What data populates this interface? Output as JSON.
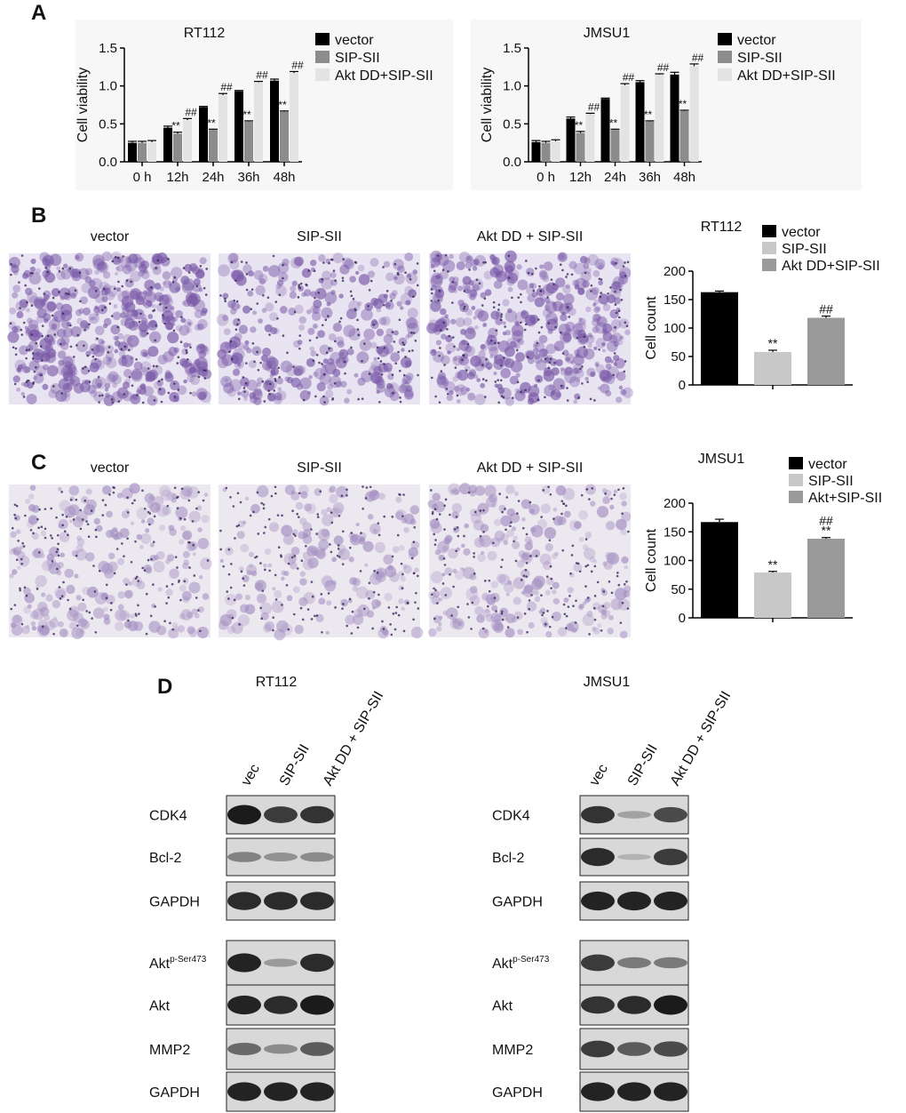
{
  "panel_labels": [
    "A",
    "B",
    "C",
    "D"
  ],
  "chart_data": [
    {
      "type": "bar",
      "title": "RT112",
      "y_label": "Cell viability",
      "categories": [
        "0 h",
        "12h",
        "24h",
        "36h",
        "48h"
      ],
      "ylim": [
        0,
        1.5
      ],
      "yticks": [
        {
          "value": 0,
          "label": "0.0"
        },
        {
          "value": 0.5,
          "label": "0.5"
        },
        {
          "value": 1,
          "label": "1.0"
        },
        {
          "value": 1.5,
          "label": "1.5"
        }
      ],
      "series": [
        {
          "name": "vector",
          "color": "#000000",
          "values": [
            0.25,
            0.45,
            0.72,
            0.93,
            1.07
          ],
          "errors": [
            0.02,
            0.02,
            0.01,
            0.01,
            0.02
          ],
          "annotations": [
            null,
            null,
            null,
            null,
            null
          ]
        },
        {
          "name": "SIP-SII",
          "color": "#8c8c8c",
          "values": [
            0.25,
            0.37,
            0.42,
            0.53,
            0.66
          ],
          "errors": [
            0.02,
            0.02,
            0.01,
            0.01,
            0.01
          ],
          "annotations": [
            null,
            [
              "**"
            ],
            [
              "**"
            ],
            [
              "**"
            ],
            [
              "**"
            ]
          ]
        },
        {
          "name": "Akt DD+SIP-SII",
          "color": "#e3e3e3",
          "values": [
            0.26,
            0.55,
            0.88,
            1.05,
            1.17
          ],
          "errors": [
            0.02,
            0.02,
            0.02,
            0.01,
            0.02
          ],
          "annotations": [
            null,
            [
              "##"
            ],
            [
              "##"
            ],
            [
              "##"
            ],
            [
              "##"
            ]
          ]
        }
      ]
    },
    {
      "type": "bar",
      "title": "JMSU1",
      "y_label": "Cell viability",
      "categories": [
        "0 h",
        "12h",
        "24h",
        "36h",
        "48h"
      ],
      "ylim": [
        0,
        1.5
      ],
      "yticks": [
        {
          "value": 0,
          "label": "0.0"
        },
        {
          "value": 0.5,
          "label": "0.5"
        },
        {
          "value": 1,
          "label": "1.0"
        },
        {
          "value": 1.5,
          "label": "1.5"
        }
      ],
      "series": [
        {
          "name": "vector",
          "color": "#000000",
          "values": [
            0.26,
            0.57,
            0.83,
            1.05,
            1.15
          ],
          "errors": [
            0.02,
            0.02,
            0.01,
            0.02,
            0.03
          ],
          "annotations": [
            null,
            null,
            null,
            null,
            null
          ]
        },
        {
          "name": "SIP-SII",
          "color": "#8c8c8c",
          "values": [
            0.25,
            0.38,
            0.42,
            0.53,
            0.67
          ],
          "errors": [
            0.02,
            0.02,
            0.01,
            0.01,
            0.01
          ],
          "annotations": [
            null,
            [
              "**"
            ],
            [
              "**"
            ],
            [
              "**"
            ],
            [
              "**"
            ]
          ]
        },
        {
          "name": "Akt DD+SIP-SII",
          "color": "#e3e3e3",
          "values": [
            0.27,
            0.63,
            1.01,
            1.15,
            1.26
          ],
          "errors": [
            0.02,
            0.01,
            0.02,
            0.01,
            0.03
          ],
          "annotations": [
            null,
            [
              "##"
            ],
            [
              "##"
            ],
            [
              "##"
            ],
            [
              "##"
            ]
          ]
        }
      ]
    },
    {
      "type": "bar",
      "title": "RT112",
      "y_label": "Cell count",
      "ylim": [
        0,
        200
      ],
      "yticks": [
        0,
        50,
        100,
        150,
        200
      ],
      "series": [
        {
          "name": "vector",
          "color": "#000000",
          "values": [
            163
          ],
          "errors": [
            2
          ],
          "annotations": [
            null
          ]
        },
        {
          "name": "SIP-SII",
          "color": "#c8c8c8",
          "values": [
            58
          ],
          "errors": [
            3
          ],
          "annotations": [
            [
              "**"
            ]
          ]
        },
        {
          "name": "Akt DD+SIP-SII",
          "color": "#9a9a9a",
          "values": [
            118
          ],
          "errors": [
            3
          ],
          "annotations": [
            [
              "##"
            ]
          ]
        }
      ]
    },
    {
      "type": "bar",
      "title": "JMSU1",
      "y_label": "Cell count",
      "ylim": [
        0,
        200
      ],
      "yticks": [
        0,
        50,
        100,
        150,
        200
      ],
      "series": [
        {
          "name": "vector",
          "color": "#000000",
          "values": [
            167
          ],
          "errors": [
            5
          ],
          "annotations": [
            null
          ]
        },
        {
          "name": "SIP-SII",
          "color": "#c8c8c8",
          "values": [
            79
          ],
          "errors": [
            2
          ],
          "annotations": [
            [
              "**"
            ]
          ]
        },
        {
          "name": "Akt+SIP-SII",
          "color": "#9a9a9a",
          "values": [
            138
          ],
          "errors": [
            2
          ],
          "annotations": [
            [
              "##",
              "**"
            ]
          ]
        }
      ]
    }
  ],
  "micrographs": [
    {
      "labels": [
        "vector",
        "SIP-SII",
        "Akt DD + SIP-SII"
      ]
    },
    {
      "labels": [
        "vector",
        "SIP-SII",
        "Akt DD + SIP-SII"
      ]
    }
  ],
  "western_blots": {
    "cell_lines": [
      "RT112",
      "JMSU1"
    ],
    "lanes": [
      "vec",
      "SIP-SII",
      "Akt DD + SIP-SII"
    ],
    "proteins": [
      "CDK4",
      "Bcl-2",
      "GAPDH",
      {
        "name": "Akt",
        "sup": "p-Ser473"
      },
      "Akt",
      "MMP2",
      "GAPDH"
    ]
  }
}
